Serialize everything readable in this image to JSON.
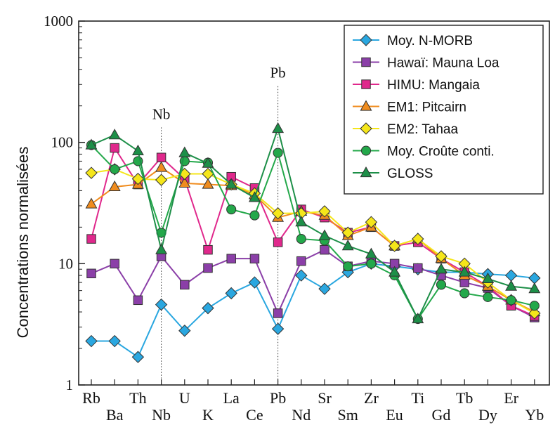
{
  "chart_data": {
    "type": "line",
    "title": "",
    "xlabel": "",
    "ylabel": "Concentrations normalisées",
    "yscale": "log",
    "ylim": [
      1,
      1000
    ],
    "yticks": [
      "1",
      "10",
      "100",
      "1000"
    ],
    "categories": [
      "Rb",
      "Ba",
      "Th",
      "Nb",
      "U",
      "K",
      "La",
      "Ce",
      "Pb",
      "Nd",
      "Sr",
      "Sm",
      "Zr",
      "Eu",
      "Ti",
      "Gd",
      "Tb",
      "Dy",
      "Er",
      "Yb"
    ],
    "grid": false,
    "legend_position": "top-right",
    "annotations": [
      {
        "text": "Nb",
        "category": "Nb",
        "y": 160
      },
      {
        "text": "Pb",
        "category": "Pb",
        "y": 350
      }
    ],
    "series": [
      {
        "name": "Moy. N-MORB",
        "color": "#2aa7e0",
        "marker": "diamond",
        "values": [
          2.3,
          2.3,
          1.7,
          4.6,
          2.8,
          4.3,
          5.7,
          7.0,
          2.9,
          8.0,
          6.2,
          8.5,
          10.0,
          9.5,
          9.0,
          8.5,
          8.5,
          8.2,
          8.0,
          7.6
        ]
      },
      {
        "name": "Hawaï: Mauna Loa",
        "color": "#8b3fa8",
        "marker": "square",
        "values": [
          8.3,
          10.0,
          5.0,
          11.5,
          6.7,
          9.2,
          11.0,
          11.0,
          3.9,
          10.5,
          13.0,
          9.5,
          10.5,
          10.0,
          9.2,
          8.0,
          7.0,
          6.3,
          4.5,
          3.6
        ]
      },
      {
        "name": "HIMU: Mangaia",
        "color": "#e0288c",
        "marker": "square",
        "values": [
          16.0,
          90.0,
          45.0,
          75.0,
          50.0,
          13.0,
          52.0,
          42.0,
          15.0,
          28.0,
          24.0,
          18.0,
          20.0,
          14.0,
          15.0,
          11.0,
          8.5,
          6.5,
          4.5,
          3.7
        ]
      },
      {
        "name": "EM1: Pitcairn",
        "color": "#f08c1e",
        "marker": "triangle",
        "values": [
          31.0,
          43.0,
          45.0,
          62.0,
          46.0,
          45.0,
          44.0,
          37.0,
          24.0,
          27.0,
          25.0,
          17.0,
          20.0,
          14.0,
          16.0,
          11.0,
          8.0,
          6.5,
          5.0,
          4.0
        ]
      },
      {
        "name": "EM2: Tahaa",
        "color": "#f5e61a",
        "marker": "diamond",
        "values": [
          56.0,
          60.0,
          50.0,
          49.0,
          55.0,
          55.0,
          45.0,
          38.0,
          26.0,
          26.0,
          27.0,
          18.0,
          22.0,
          14.0,
          16.0,
          11.5,
          10.0,
          7.0,
          5.0,
          3.9
        ]
      },
      {
        "name": "Moy. Croûte conti.",
        "color": "#23a84a",
        "marker": "circle",
        "values": [
          95.0,
          60.0,
          70.0,
          18.0,
          70.0,
          68.0,
          28.0,
          25.0,
          82.0,
          16.0,
          15.5,
          9.5,
          10.0,
          8.0,
          3.5,
          6.7,
          5.7,
          5.3,
          5.0,
          4.5
        ]
      },
      {
        "name": "GLOSS",
        "color": "#1d8f48",
        "marker": "triangle",
        "values": [
          95.0,
          115.0,
          85.0,
          13.0,
          82.0,
          67.0,
          45.0,
          35.0,
          130.0,
          22.0,
          17.0,
          14.0,
          12.0,
          8.5,
          3.5,
          9.0,
          8.5,
          7.5,
          6.5,
          6.2
        ]
      }
    ]
  }
}
